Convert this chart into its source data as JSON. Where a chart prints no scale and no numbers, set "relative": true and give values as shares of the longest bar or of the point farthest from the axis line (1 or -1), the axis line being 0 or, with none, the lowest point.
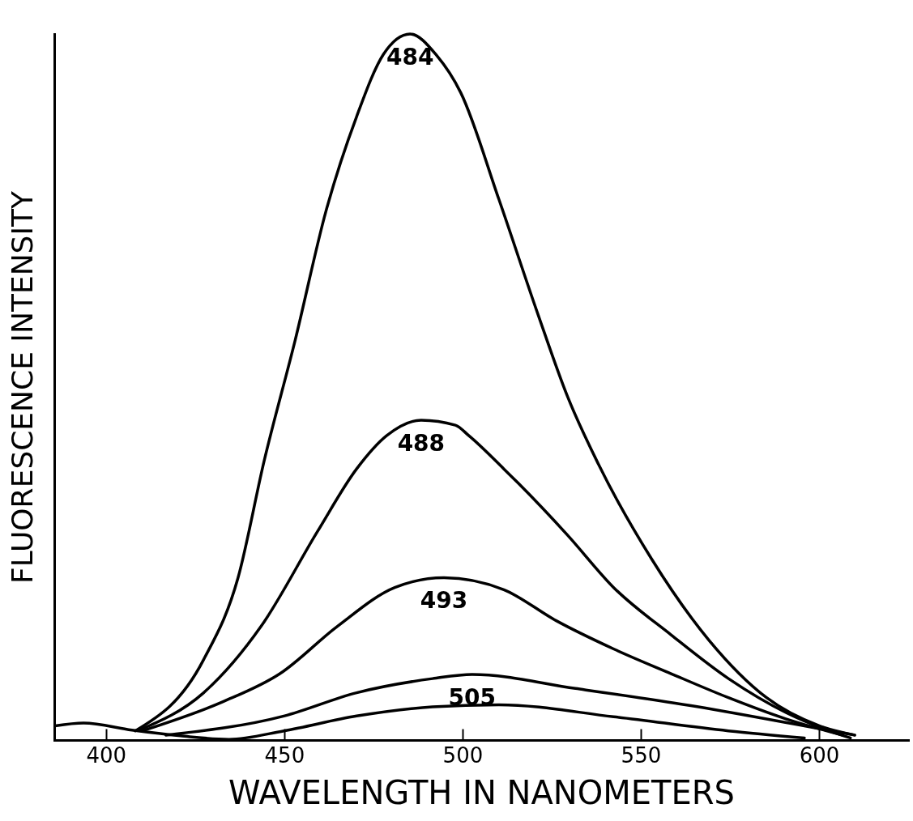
{
  "chart_data": {
    "type": "line",
    "relative": true,
    "xlabel": "WAVELENGTH IN NANOMETERS",
    "ylabel": "FLUORESCENCE INTENSITY",
    "xlim": [
      385.5,
      625
    ],
    "xticks": [
      400,
      450,
      500,
      550,
      600
    ],
    "grid": false,
    "legend": false,
    "marker": "none",
    "line_style": "solid",
    "series": [
      {
        "name": "484",
        "color": "#000000",
        "x": [
          408.2,
          427.4,
          437.0,
          444.4,
          453.1,
          461.7,
          470.3,
          477.8,
          485.3,
          492.7,
          499.5,
          510.2,
          521.1,
          529.5,
          538.1,
          553.1,
          569.2,
          585.3,
          600.2,
          610.0
        ],
        "values": [
          0.013,
          0.114,
          0.229,
          0.396,
          0.567,
          0.749,
          0.883,
          0.971,
          1,
          0.97,
          0.917,
          0.766,
          0.604,
          0.486,
          0.391,
          0.256,
          0.141,
          0.06,
          0.02,
          0.007
        ]
      },
      {
        "name": "488",
        "color": "#000000",
        "x": [
          409.3,
          427.4,
          443.5,
          459.4,
          470.3,
          478.7,
          488.4,
          498.0,
          501.8,
          511.6,
          515.6,
          529.5,
          542.4,
          558.5,
          574.6,
          590.7,
          602.3,
          608.8
        ],
        "values": [
          0.014,
          0.067,
          0.161,
          0.296,
          0.384,
          0.431,
          0.453,
          0.446,
          0.431,
          0.384,
          0.364,
          0.29,
          0.216,
          0.149,
          0.087,
          0.039,
          0.014,
          0.003
        ]
      },
      {
        "name": "493",
        "color": "#000000",
        "x": [
          410.2,
          432.7,
          448.8,
          464.9,
          481.0,
          494.8,
          511.6,
          526.3,
          542.4,
          558.5,
          574.6,
          590.7,
          606.6
        ],
        "values": [
          0.013,
          0.054,
          0.094,
          0.161,
          0.216,
          0.23,
          0.213,
          0.169,
          0.129,
          0.094,
          0.06,
          0.03,
          0.007
        ]
      },
      {
        "name": "505",
        "color": "#000000",
        "x": [
          416.8,
          449.9,
          470.3,
          491.6,
          502.7,
          531.7,
          563.7,
          595.9,
          610.0
        ],
        "values": [
          0.007,
          0.034,
          0.067,
          0.087,
          0.093,
          0.073,
          0.049,
          0.02,
          0.007
        ]
      },
      {
        "color": "#000000",
        "x": [
          385.7,
          393.7,
          407.3,
          420.9,
          434.5,
          449.9,
          470.3,
          491.6,
          510.2,
          542.4,
          574.6,
          595.9
        ],
        "values": [
          0.02,
          0.024,
          0.014,
          0.006,
          0.001,
          0.013,
          0.034,
          0.047,
          0.05,
          0.033,
          0.013,
          0.003
        ]
      }
    ]
  }
}
